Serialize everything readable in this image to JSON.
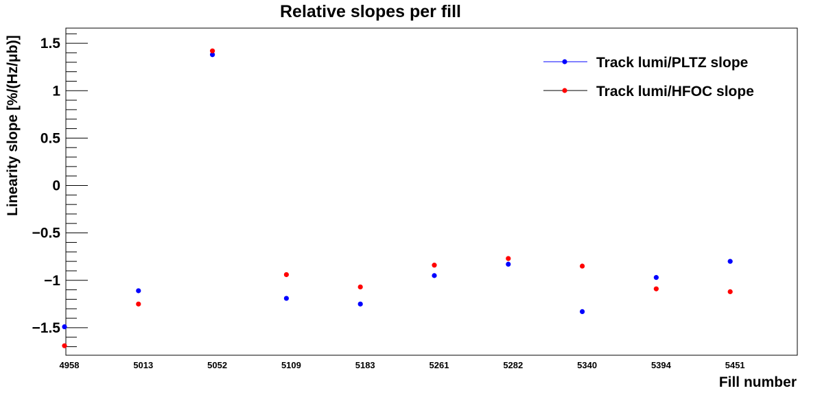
{
  "chart_data": {
    "type": "scatter",
    "title": "Relative slopes per fill",
    "xlabel": "Fill number",
    "ylabel": "Linearity slope [%/(Hz/μb)]",
    "categories": [
      "4958",
      "5013",
      "5052",
      "5109",
      "5183",
      "5261",
      "5282",
      "5340",
      "5394",
      "5451"
    ],
    "ylim": [
      -1.79,
      1.66
    ],
    "yticks": [
      {
        "value": 1.5,
        "label": "1.5"
      },
      {
        "value": 1,
        "label": "1"
      },
      {
        "value": 0.5,
        "label": "0.5"
      },
      {
        "value": 0,
        "label": "0"
      },
      {
        "value": -0.5,
        "label": "−0.5"
      },
      {
        "value": -1,
        "label": "−1"
      },
      {
        "value": -1.5,
        "label": "−1.5"
      }
    ],
    "legend_position": "top-right",
    "grid": false,
    "series": [
      {
        "name": "Track lumi/PLTZ slope",
        "color": "#0000ff",
        "values": [
          -1.49,
          -1.11,
          1.38,
          -1.19,
          -1.25,
          -0.95,
          -0.83,
          -1.33,
          -0.97,
          -0.8
        ]
      },
      {
        "name": "Track lumi/HFOC slope",
        "color": "#ff0000",
        "values": [
          -1.69,
          -1.25,
          1.42,
          -0.94,
          -1.07,
          -0.84,
          -0.77,
          -0.85,
          -1.09,
          -1.12
        ]
      }
    ]
  }
}
